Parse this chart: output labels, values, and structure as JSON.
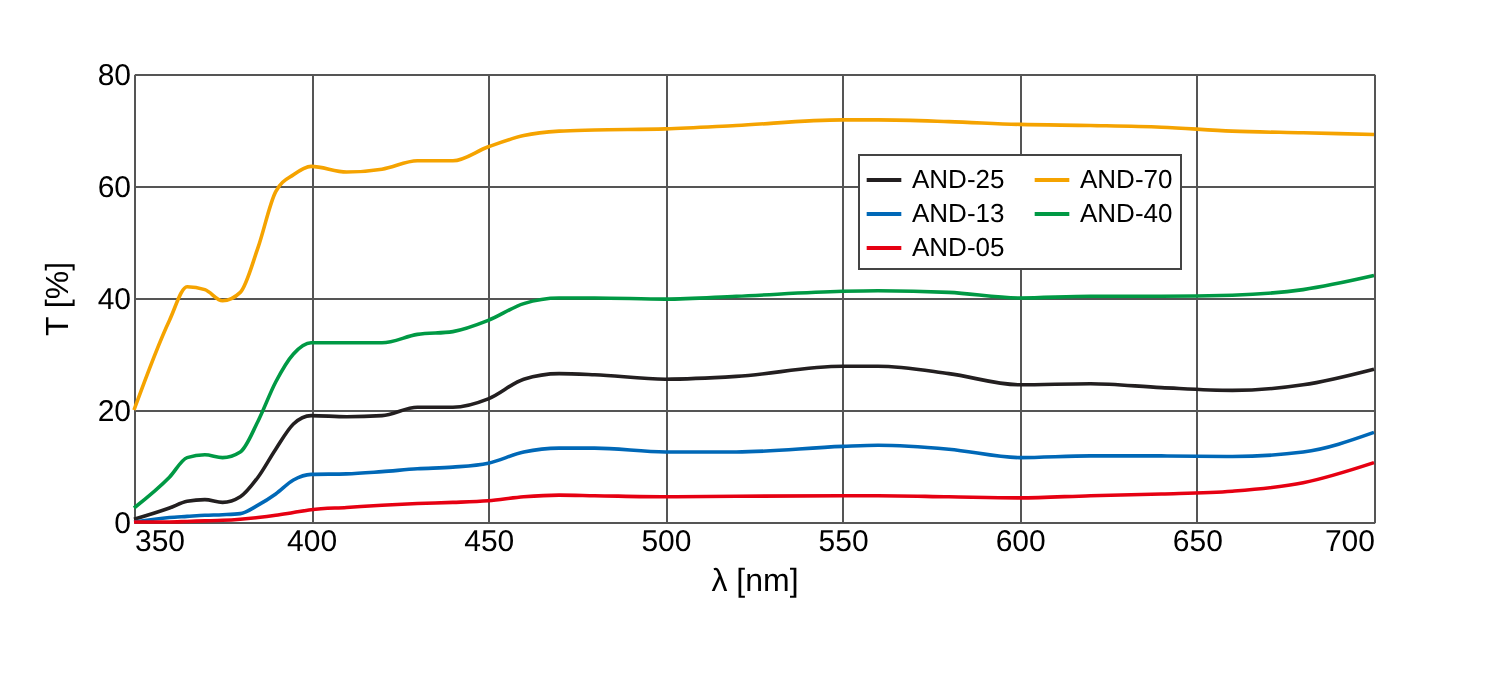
{
  "chart_data": {
    "type": "line",
    "xlabel": "λ [nm]",
    "ylabel": "T [%]",
    "x": [
      350,
      360,
      365,
      370,
      375,
      380,
      385,
      390,
      395,
      400,
      410,
      420,
      430,
      440,
      450,
      460,
      470,
      480,
      500,
      520,
      550,
      560,
      580,
      600,
      620,
      640,
      660,
      680,
      700
    ],
    "series": [
      {
        "name": "AND-25",
        "color": "#231f20",
        "values": [
          0.5,
          2.5,
          3.7,
          4,
          3.5,
          4.5,
          8,
          13,
          17.5,
          19,
          18.8,
          19,
          20.5,
          20.5,
          22,
          25.5,
          26.5,
          26.3,
          25.5,
          26,
          27.8,
          27.8,
          26.5,
          24.5,
          24.7,
          24,
          23.5,
          24.5,
          27.3
        ]
      },
      {
        "name": "AND-13",
        "color": "#0068b7",
        "values": [
          0,
          0.8,
          1,
          1.2,
          1.3,
          1.5,
          3,
          5,
          7.5,
          8.5,
          8.6,
          9,
          9.5,
          9.8,
          10.5,
          12.5,
          13.2,
          13.2,
          12.5,
          12.5,
          13.5,
          13.7,
          13,
          11.5,
          11.8,
          11.8,
          11.7,
          12.5,
          16
        ]
      },
      {
        "name": "AND-05",
        "color": "#e60012",
        "values": [
          0,
          0,
          0.1,
          0.2,
          0.3,
          0.5,
          0.8,
          1.2,
          1.7,
          2.2,
          2.6,
          3,
          3.3,
          3.5,
          3.8,
          4.5,
          4.8,
          4.7,
          4.5,
          4.6,
          4.7,
          4.7,
          4.5,
          4.3,
          4.7,
          5,
          5.5,
          7,
          10.6
        ]
      },
      {
        "name": "AND-70",
        "color": "#f5a300",
        "values": [
          20,
          36,
          42,
          41.5,
          39.5,
          41,
          49,
          59,
          62,
          63.5,
          62.5,
          63,
          64.5,
          64.5,
          67,
          69,
          69.8,
          70,
          70.2,
          70.8,
          71.8,
          71.8,
          71.5,
          71,
          70.8,
          70.5,
          69.8,
          69.5,
          69.2
        ]
      },
      {
        "name": "AND-40",
        "color": "#009944",
        "values": [
          2.5,
          8,
          11.5,
          12,
          11.5,
          12.5,
          18,
          25,
          30,
          32,
          32,
          32,
          33.5,
          34,
          36,
          39,
          40,
          40,
          39.8,
          40.3,
          41.2,
          41.3,
          41,
          40,
          40.3,
          40.3,
          40.5,
          41.5,
          44
        ]
      }
    ],
    "xlim": [
      350,
      700
    ],
    "xticks": [
      350,
      400,
      450,
      500,
      550,
      600,
      650,
      700
    ],
    "ylim": [
      0,
      80
    ],
    "yticks": [
      0,
      20,
      40,
      60,
      80
    ],
    "grid": true,
    "legend": "top right",
    "line_style": "solid",
    "marker": "none"
  }
}
